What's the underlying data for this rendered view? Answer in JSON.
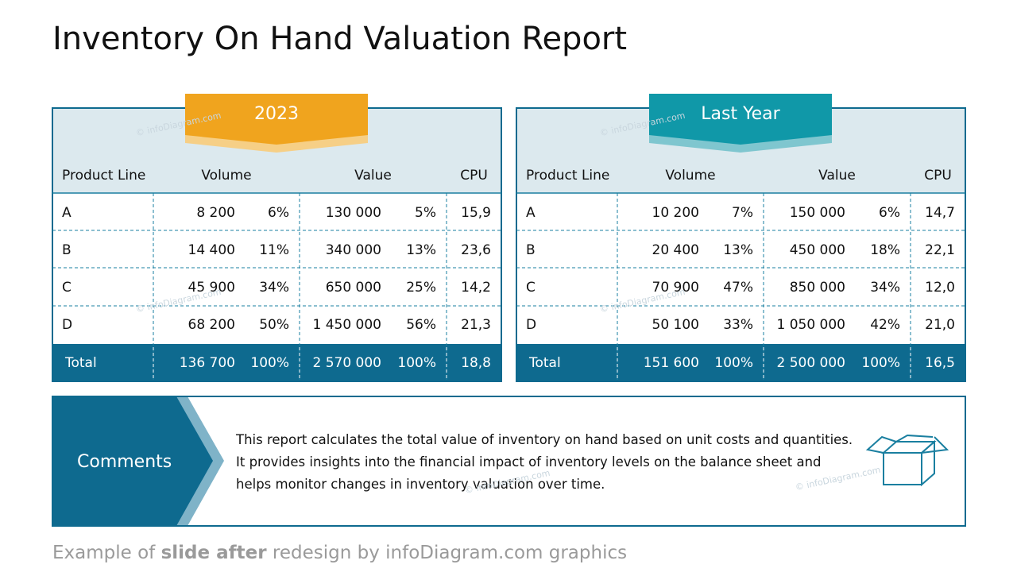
{
  "title": "Inventory On Hand Valuation Report",
  "watermark": "© infoDiagram.com",
  "tables": [
    {
      "label": "2023",
      "columns": [
        "Product Line",
        "Volume",
        "Value",
        "CPU"
      ],
      "rows": [
        [
          "A",
          "8 200",
          "6%",
          "130 000",
          "5%",
          "15,9"
        ],
        [
          "B",
          "14 400",
          "11%",
          "340 000",
          "13%",
          "23,6"
        ],
        [
          "C",
          "45 900",
          "34%",
          "650 000",
          "25%",
          "14,2"
        ],
        [
          "D",
          "68 200",
          "50%",
          "1 450 000",
          "56%",
          "21,3"
        ]
      ],
      "total": [
        "Total",
        "136 700",
        "100%",
        "2 570 000",
        "100%",
        "18,8"
      ]
    },
    {
      "label": "Last Year",
      "columns": [
        "Product Line",
        "Volume",
        "Value",
        "CPU"
      ],
      "rows": [
        [
          "A",
          "10 200",
          "7%",
          "150 000",
          "6%",
          "14,7"
        ],
        [
          "B",
          "20 400",
          "13%",
          "450 000",
          "18%",
          "22,1"
        ],
        [
          "C",
          "70 900",
          "47%",
          "850 000",
          "34%",
          "12,0"
        ],
        [
          "D",
          "50 100",
          "33%",
          "1 050 000",
          "42%",
          "21,0"
        ]
      ],
      "total": [
        "Total",
        "151 600",
        "100%",
        "2 500 000",
        "100%",
        "16,5"
      ]
    }
  ],
  "comments": {
    "label": "Comments",
    "text": "This report calculates the total value of inventory on hand based on unit costs and quantities. It provides insights into the financial impact of inventory levels on the balance sheet and helps monitor changes in inventory valuation over time."
  },
  "footer": {
    "parts": [
      "Example of ",
      "slide after",
      " redesign by infoDiagram.com graphics"
    ]
  }
}
